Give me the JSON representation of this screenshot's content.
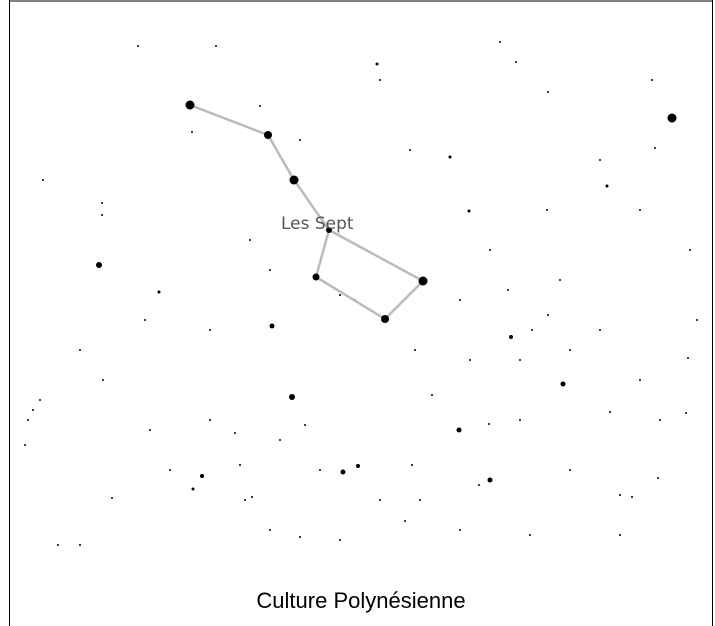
{
  "constellation": {
    "label": "Les Sept"
  },
  "caption": "Culture Polynésienne"
}
